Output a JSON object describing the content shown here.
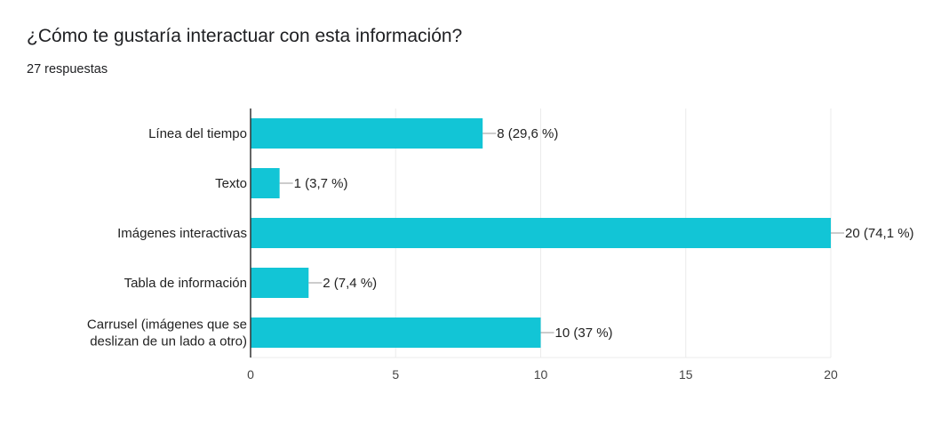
{
  "header": {
    "title": "¿Cómo te gustaría interactuar con esta información?",
    "responses": "27 respuestas"
  },
  "colors": {
    "bar": "#12c5d6",
    "axis": "#333333",
    "grid": "#ebebeb",
    "leader": "#999999"
  },
  "chart_data": {
    "type": "bar",
    "orientation": "horizontal",
    "title": "¿Cómo te gustaría interactuar con esta información?",
    "categories": [
      [
        "Línea del tiempo"
      ],
      [
        "Texto"
      ],
      [
        "Imágenes interactivas"
      ],
      [
        "Tabla de información"
      ],
      [
        "Carrusel (imágenes que se",
        "deslizan de un lado a otro)"
      ]
    ],
    "values": [
      8,
      1,
      20,
      2,
      10
    ],
    "data_labels": [
      "8 (29,6 %)",
      "1 (3,7 %)",
      "20 (74,1 %)",
      "2 (7,4 %)",
      "10 (37 %)"
    ],
    "xlim": [
      0,
      20
    ],
    "xticks": [
      0,
      5,
      10,
      15,
      20
    ],
    "xlabel": "",
    "ylabel": "",
    "grid": true,
    "legend": "none"
  }
}
